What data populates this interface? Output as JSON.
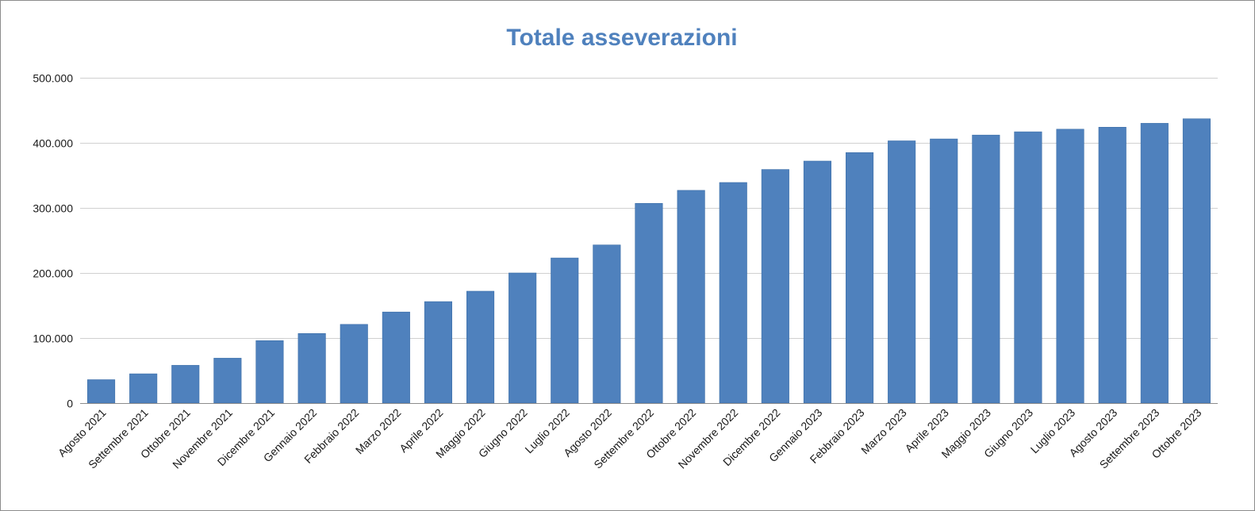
{
  "chart_data": {
    "type": "bar",
    "title": "Totale asseverazioni",
    "xlabel": "",
    "ylabel": "",
    "ylim": [
      0,
      500000
    ],
    "yticks": [
      0,
      100000,
      200000,
      300000,
      400000,
      500000
    ],
    "ytick_labels": [
      "0",
      "100.000",
      "200.000",
      "300.000",
      "400.000",
      "500.000"
    ],
    "grid": true,
    "legend": "none",
    "bar_color": "#4f81bd",
    "categories": [
      "Agosto 2021",
      "Settembre 2021",
      "Ottobre 2021",
      "Novembre 2021",
      "Dicembre 2021",
      "Gennaio 2022",
      "Febbraio 2022",
      "Marzo 2022",
      "Aprile 2022",
      "Maggio 2022",
      "Giugno 2022",
      "Luglio 2022",
      "Agosto 2022",
      "Settembre 2022",
      "Ottobre 2022",
      "Novembre 2022",
      "Dicembre 2022",
      "Gennaio 2023",
      "Febbraio 2023",
      "Marzo 2023",
      "Aprile 2023",
      "Maggio 2023",
      "Giugno 2023",
      "Luglio 2023",
      "Agosto 2023",
      "Settembre 2023",
      "Ottobre 2023"
    ],
    "values": [
      36000,
      45000,
      58000,
      69000,
      96000,
      107000,
      121000,
      140000,
      156000,
      172000,
      200000,
      223000,
      243000,
      307000,
      327000,
      339000,
      359000,
      372000,
      385000,
      403000,
      406000,
      412000,
      417000,
      421000,
      424000,
      430000,
      437000
    ]
  }
}
